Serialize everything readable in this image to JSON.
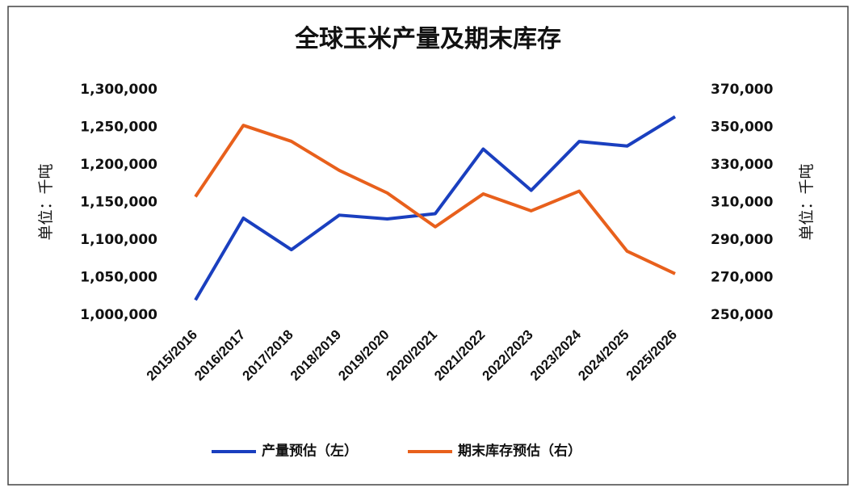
{
  "chart_data": {
    "type": "line",
    "title": "全球玉米产量及期末库存",
    "y_label": "单位：千吨",
    "y2_label": "单位：千吨",
    "categories": [
      "2015/2016",
      "2016/2017",
      "2017/2018",
      "2018/2019",
      "2019/2020",
      "2020/2021",
      "2021/2022",
      "2022/2023",
      "2023/2024",
      "2024/2025",
      "2025/2026"
    ],
    "series": [
      {
        "name": "产量预估（左）",
        "color": "#1a3fbf",
        "values": [
          1020000,
          1129000,
          1087000,
          1133000,
          1128000,
          1135000,
          1221000,
          1166000,
          1231000,
          1225000,
          1264000
        ]
      },
      {
        "name": "期末库存预估（右）",
        "color": "#e8601c",
        "axis": "y2",
        "values": [
          313000,
          351000,
          342500,
          327000,
          315000,
          297000,
          314500,
          305500,
          316000,
          284000,
          272000
        ]
      }
    ],
    "ylim": [
      1000000,
      1300000
    ],
    "yticks": [
      {
        "value": 1000000,
        "label": "1,000,000"
      },
      {
        "value": 1050000,
        "label": "1,050,000"
      },
      {
        "value": 1100000,
        "label": "1,100,000"
      },
      {
        "value": 1150000,
        "label": "1,150,000"
      },
      {
        "value": 1200000,
        "label": "1,200,000"
      },
      {
        "value": 1250000,
        "label": "1,250,000"
      },
      {
        "value": 1300000,
        "label": "1,300,000"
      }
    ],
    "y2lim": [
      250000,
      370000
    ],
    "y2ticks": [
      {
        "value": 250000,
        "label": "250,000"
      },
      {
        "value": 270000,
        "label": "270,000"
      },
      {
        "value": 290000,
        "label": "290,000"
      },
      {
        "value": 310000,
        "label": "310,000"
      },
      {
        "value": 330000,
        "label": "330,000"
      },
      {
        "value": 350000,
        "label": "350,000"
      },
      {
        "value": 370000,
        "label": "370,000"
      }
    ]
  }
}
